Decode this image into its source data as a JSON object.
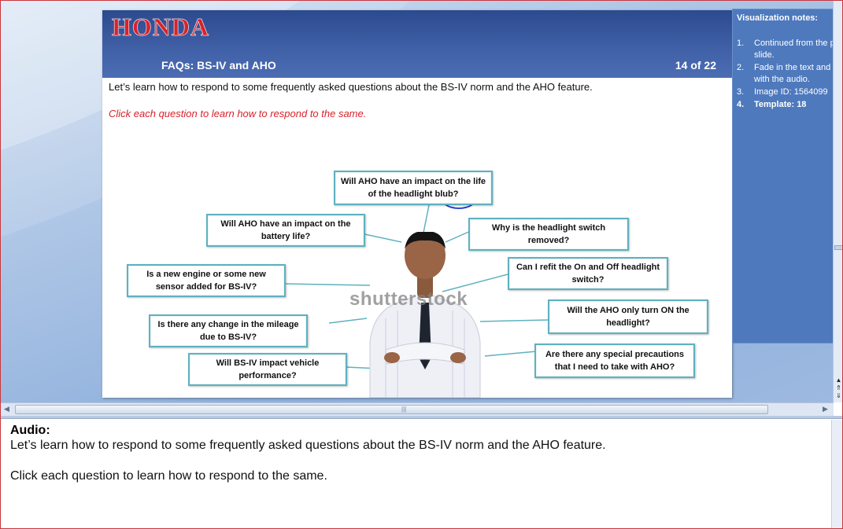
{
  "slide": {
    "logo": "HONDA",
    "title": "FAQs: BS-IV and AHO",
    "counter": "14 of 22",
    "intro": "Let’s learn how to respond to some frequently asked questions about the BS-IV norm and the AHO feature.",
    "instruction": "Click each question to learn how to respond to the same.",
    "watermark": "shutterstock",
    "questions": [
      {
        "text": "Will AHO have an impact on the life of the headlight blub?"
      },
      {
        "text": "Will AHO have an impact on the battery life?"
      },
      {
        "text": "Why is the headlight switch removed?"
      },
      {
        "text": "Is a new engine or some new sensor added for BS-IV?"
      },
      {
        "text": "Can I refit the On and Off headlight switch?"
      },
      {
        "text": "Is there any change in the mileage due to BS-IV?"
      },
      {
        "text": "Will the AHO only turn ON the headlight?"
      },
      {
        "text": "Will BS-IV impact vehicle performance?"
      },
      {
        "text": "Are there any special precautions that I need to take with AHO?"
      }
    ],
    "colors": {
      "banner": "#3f5fa6",
      "logo": "#d8222a",
      "box_border": "#5fb1bf",
      "instruction": "#d8222a"
    }
  },
  "notes": {
    "title": "Visualization notes:",
    "items": [
      {
        "num": "1.",
        "text": "Continued from the previous slide."
      },
      {
        "num": "2.",
        "text": "Fade in the text and in sync with the audio."
      },
      {
        "num": "3.",
        "text": "Image ID: 1564099"
      },
      {
        "num": "4.",
        "text": "Template: 18"
      }
    ]
  },
  "audio": {
    "label": "Audio:",
    "line1": "Let’s learn how to respond to some frequently asked questions about the BS-IV norm and the AHO feature.",
    "line2": "Click each  question to learn how to respond to the same."
  }
}
